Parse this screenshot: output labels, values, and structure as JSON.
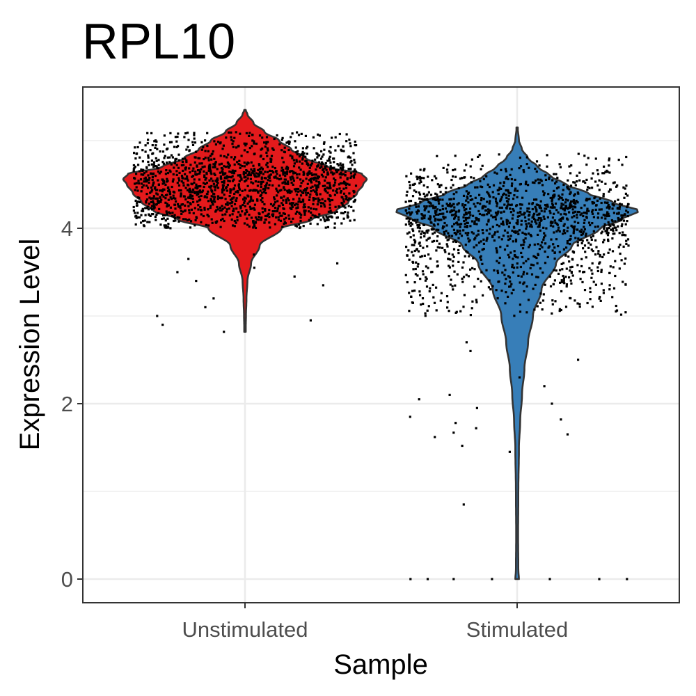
{
  "chart_data": {
    "type": "violin",
    "title": "RPL10",
    "xlabel": "Sample",
    "ylabel": "Expression Level",
    "categories": [
      "Unstimulated",
      "Stimulated"
    ],
    "y_ticks": [
      0,
      2,
      4
    ],
    "ylim": [
      -0.25,
      5.6
    ],
    "grid": true,
    "legend": "none",
    "series": [
      {
        "name": "Unstimulated",
        "color": "#E41A1C",
        "y_min": 2.82,
        "y_max": 5.35,
        "median": 4.5,
        "violin_profile": [
          [
            2.82,
            0.005
          ],
          [
            3.0,
            0.008
          ],
          [
            3.2,
            0.012
          ],
          [
            3.4,
            0.02
          ],
          [
            3.6,
            0.05
          ],
          [
            3.8,
            0.12
          ],
          [
            4.0,
            0.3
          ],
          [
            4.1,
            0.55
          ],
          [
            4.2,
            0.75
          ],
          [
            4.3,
            0.85
          ],
          [
            4.4,
            0.92
          ],
          [
            4.5,
            0.97
          ],
          [
            4.56,
            1.0
          ],
          [
            4.62,
            0.96
          ],
          [
            4.7,
            0.68
          ],
          [
            4.8,
            0.5
          ],
          [
            4.9,
            0.38
          ],
          [
            5.0,
            0.28
          ],
          [
            5.1,
            0.16
          ],
          [
            5.2,
            0.07
          ],
          [
            5.3,
            0.02
          ],
          [
            5.35,
            0.005
          ]
        ],
        "jitter_points": {
          "count": 1600,
          "bulk_range": [
            4.0,
            5.1
          ],
          "outliers": [
            3.1,
            3.55,
            3.45,
            3.6,
            3.4,
            3.2,
            3.0,
            2.95,
            2.9,
            2.82,
            3.35,
            3.5,
            3.65,
            3.7
          ]
        }
      },
      {
        "name": "Stimulated",
        "color": "#377EB8",
        "y_min": 0.0,
        "y_max": 5.15,
        "median": 4.1,
        "violin_profile": [
          [
            0.0,
            0.015
          ],
          [
            0.1,
            0.01
          ],
          [
            0.5,
            0.008
          ],
          [
            1.0,
            0.01
          ],
          [
            1.5,
            0.015
          ],
          [
            1.8,
            0.025
          ],
          [
            2.1,
            0.04
          ],
          [
            2.4,
            0.06
          ],
          [
            2.7,
            0.09
          ],
          [
            3.0,
            0.13
          ],
          [
            3.3,
            0.2
          ],
          [
            3.6,
            0.32
          ],
          [
            3.8,
            0.45
          ],
          [
            4.0,
            0.68
          ],
          [
            4.1,
            0.86
          ],
          [
            4.2,
            1.0
          ],
          [
            4.3,
            0.78
          ],
          [
            4.4,
            0.58
          ],
          [
            4.5,
            0.4
          ],
          [
            4.6,
            0.27
          ],
          [
            4.7,
            0.17
          ],
          [
            4.8,
            0.09
          ],
          [
            4.9,
            0.04
          ],
          [
            5.0,
            0.015
          ],
          [
            5.15,
            0.004
          ]
        ],
        "jitter_points": {
          "count": 1500,
          "bulk_range": [
            3.0,
            4.85
          ],
          "outliers": [
            0.0,
            0.0,
            0.0,
            0.0,
            0.0,
            0.0,
            0.0,
            0.85,
            1.45,
            1.52,
            1.62,
            1.65,
            1.67,
            1.72,
            1.78,
            1.82,
            1.85,
            1.95,
            2.0,
            2.05,
            2.1,
            2.2,
            2.3,
            2.5,
            2.6,
            2.7
          ]
        }
      }
    ]
  }
}
